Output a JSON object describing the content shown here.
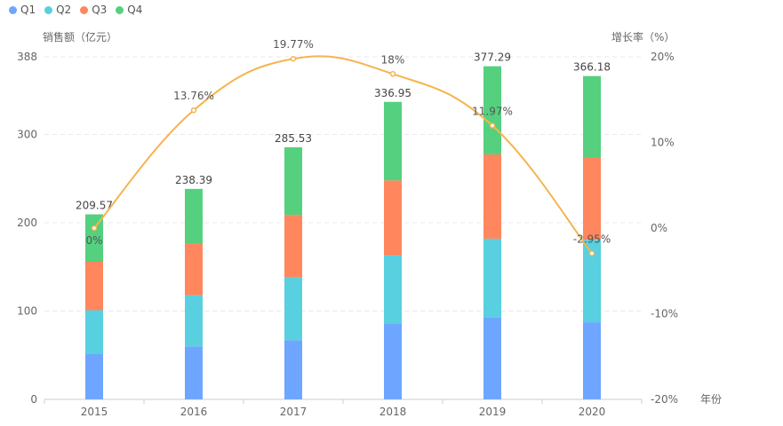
{
  "chart_data": {
    "type": "bar",
    "categories": [
      "2015",
      "2016",
      "2017",
      "2018",
      "2019",
      "2020"
    ],
    "xlabel": "年份",
    "ylabel": "销售额（亿元）",
    "y2label": "增长率（%）",
    "ylim": [
      0,
      388
    ],
    "yticks": [
      "0",
      "100",
      "200",
      "300",
      "388"
    ],
    "y2lim": [
      -20,
      20
    ],
    "y2ticks": [
      "-20%",
      "-10%",
      "0%",
      "10%",
      "20%"
    ],
    "grid": true,
    "legend_position": "top-left",
    "series": [
      {
        "name": "Q1",
        "color": "#6ea6ff",
        "values": [
          52,
          60,
          67,
          85.4,
          92.5,
          87.4
        ]
      },
      {
        "name": "Q2",
        "color": "#58d0df",
        "values": [
          49,
          58,
          71,
          77.6,
          89.5,
          93.4
        ]
      },
      {
        "name": "Q3",
        "color": "#ff865d",
        "values": [
          54.8,
          58,
          71,
          85,
          95.5,
          93.6
        ]
      },
      {
        "name": "Q4",
        "color": "#55d07f",
        "values": [
          53.77,
          62.39,
          76.53,
          88.95,
          99.79,
          91.78
        ]
      }
    ],
    "totals": [
      "209.57",
      "238.39",
      "285.53",
      "336.95",
      "377.29",
      "366.18"
    ],
    "line": {
      "name": "增长率",
      "color": "#f5b44f",
      "values": [
        0,
        13.76,
        19.77,
        18,
        11.97,
        -2.95
      ],
      "labels": [
        "0%",
        "13.76%",
        "19.77%",
        "18%",
        "11.97%",
        "-2.95%"
      ]
    }
  }
}
